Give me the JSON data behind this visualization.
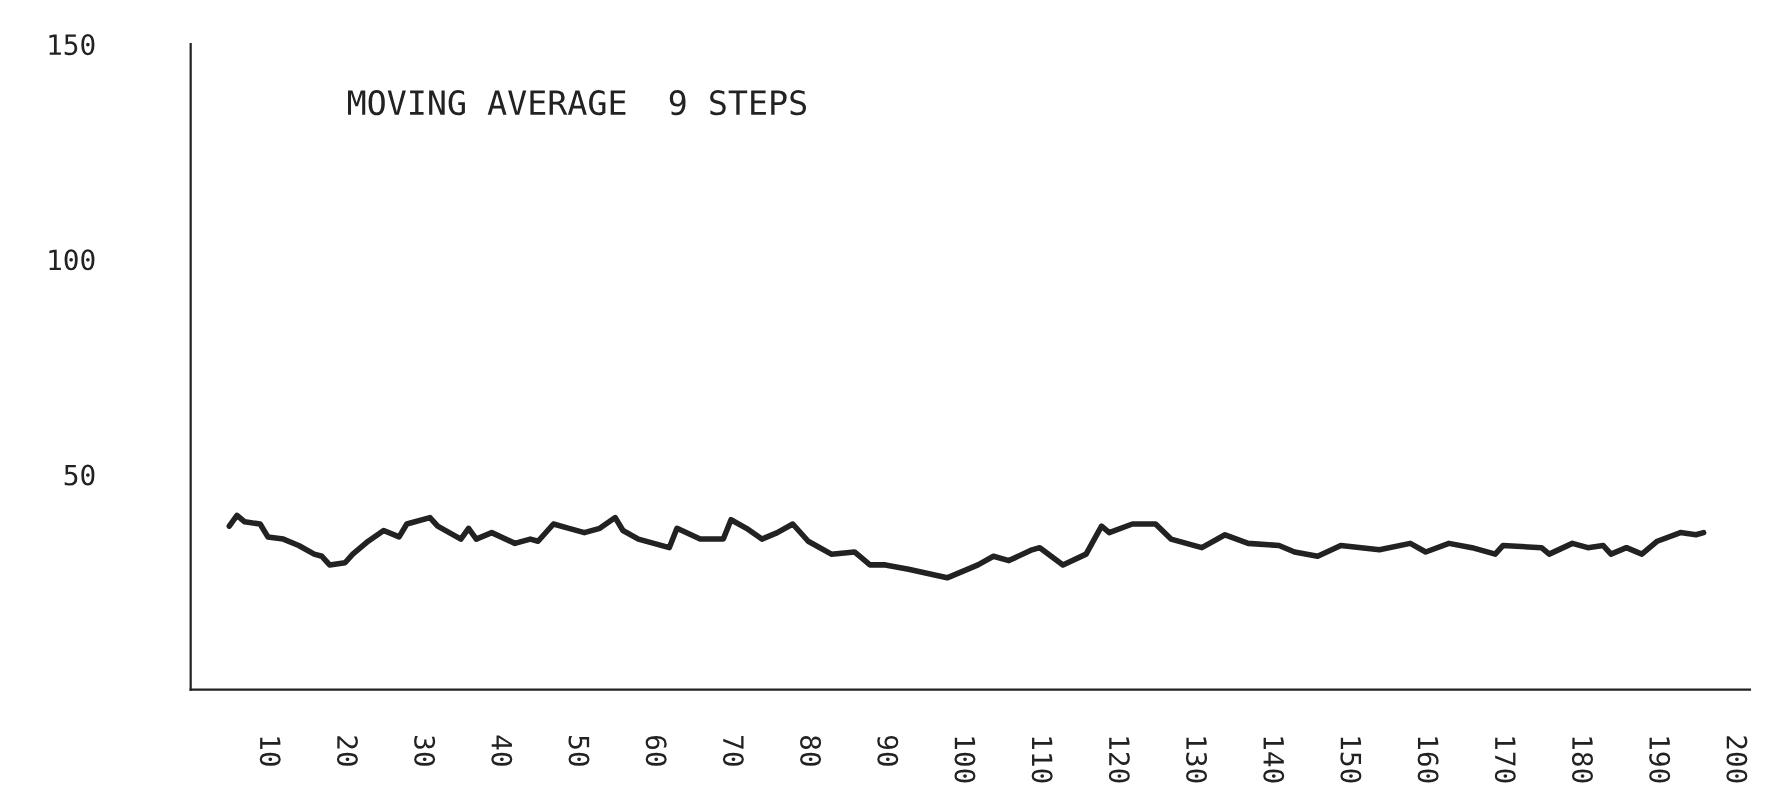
{
  "chart_data": {
    "type": "line",
    "title": "MOVING AVERAGE  9 STEPS",
    "x": [
      5,
      6,
      7,
      9,
      10,
      12,
      14,
      16,
      17,
      18,
      20,
      21,
      23,
      25,
      27,
      28,
      31,
      32,
      35,
      36,
      37,
      39,
      42,
      44,
      45,
      47,
      49,
      51,
      53,
      55,
      56,
      58,
      62,
      63,
      66,
      69,
      70,
      72,
      74,
      76,
      78,
      80,
      83,
      86,
      88,
      90,
      93,
      98,
      102,
      104,
      106,
      109,
      110,
      113,
      116,
      118,
      119,
      122,
      125,
      127,
      131,
      134,
      137,
      141,
      143,
      146,
      149,
      154,
      158,
      160,
      163,
      166,
      169,
      170,
      175,
      176,
      179,
      181,
      183,
      184,
      186,
      188,
      190,
      193,
      195,
      196
    ],
    "series": [
      {
        "color": "#222222",
        "values": [
          38,
          40.5,
          39,
          38.5,
          35.5,
          35,
          33.5,
          31.5,
          31,
          29,
          29.5,
          31.5,
          34.5,
          37,
          35.5,
          38.5,
          40,
          38,
          35,
          37.5,
          35,
          36.5,
          34,
          35,
          34.5,
          38.5,
          37.5,
          36.5,
          37.5,
          40,
          37,
          35,
          33,
          37.5,
          35,
          35,
          39.5,
          37.5,
          35,
          36.5,
          38.5,
          34.5,
          31.5,
          32,
          29,
          29,
          28,
          26,
          29,
          31,
          30,
          32.5,
          33,
          29,
          31.5,
          38,
          36.5,
          38.5,
          38.5,
          35,
          33,
          36,
          34,
          33.5,
          32,
          31,
          33.5,
          32.5,
          34,
          32,
          34,
          33,
          31.5,
          33.5,
          33,
          31.5,
          34,
          33,
          33.5,
          31.5,
          33,
          31.5,
          34.5,
          36.5,
          36,
          36.5
        ]
      }
    ],
    "xlim": [
      0,
      202
    ],
    "ylim": [
      0,
      150
    ],
    "xticks": [
      10,
      20,
      30,
      40,
      50,
      60,
      70,
      80,
      90,
      100,
      110,
      120,
      130,
      140,
      150,
      160,
      170,
      180,
      190,
      200
    ],
    "yticks": [
      50,
      100,
      150
    ],
    "grid": false,
    "marker": "none",
    "line_style": "solid"
  }
}
